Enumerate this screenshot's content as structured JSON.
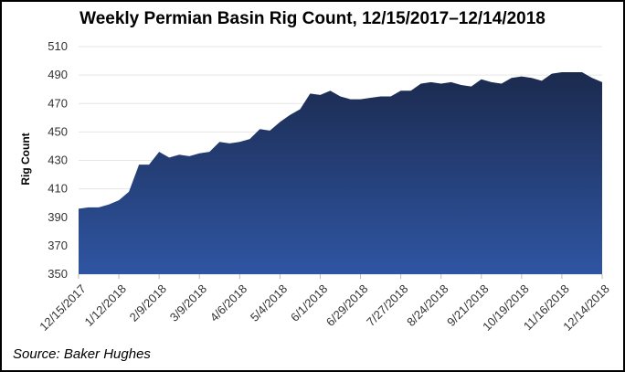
{
  "chart_data": {
    "type": "area",
    "title": "Weekly Permian Basin Rig Count, 12/15/2017–12/14/2018",
    "ylabel": "Rig Count",
    "xlabel": "",
    "source": "Source: Baker Hughes",
    "ylim": [
      350,
      510
    ],
    "yticks": [
      350,
      370,
      390,
      410,
      430,
      450,
      470,
      490,
      510
    ],
    "xtick_labels": [
      "12/15/2017",
      "1/12/2018",
      "2/9/2018",
      "3/9/2018",
      "4/6/2018",
      "5/4/2018",
      "6/1/2018",
      "6/29/2018",
      "7/27/2018",
      "8/24/2018",
      "9/21/2018",
      "10/19/2018",
      "11/16/2018",
      "12/14/2018"
    ],
    "grid": true,
    "colors": {
      "fill_top": "#1b2a4e",
      "fill_bottom": "#2f55a3",
      "grid": "#e6e6e6"
    },
    "values": [
      396,
      397,
      397,
      399,
      402,
      408,
      427,
      427,
      436,
      432,
      434,
      433,
      435,
      436,
      443,
      442,
      443,
      445,
      452,
      451,
      457,
      462,
      466,
      477,
      476,
      479,
      475,
      473,
      473,
      474,
      475,
      475,
      479,
      479,
      484,
      485,
      484,
      485,
      483,
      482,
      487,
      485,
      484,
      488,
      489,
      488,
      486,
      491,
      492,
      492,
      492,
      488,
      485
    ]
  }
}
